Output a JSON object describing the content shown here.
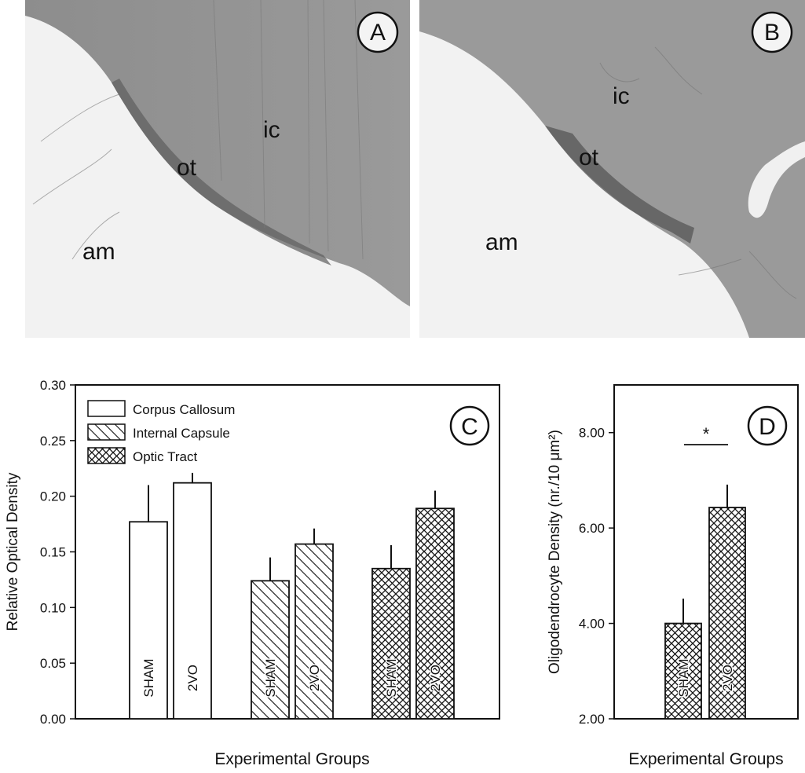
{
  "panel_a": {
    "letter": "A",
    "labels": {
      "ic": "ic",
      "ot": "ot",
      "am": "am"
    }
  },
  "panel_b": {
    "letter": "B",
    "labels": {
      "ic": "ic",
      "ot": "ot",
      "am": "am"
    }
  },
  "chart_data": [
    {
      "id": "C",
      "type": "bar",
      "panel_letter": "C",
      "ylabel": "Relative Optical Density",
      "xlabel": "Experimental Groups",
      "ylim": [
        0,
        0.3
      ],
      "yticks": [
        "0.00",
        "0.05",
        "0.10",
        "0.15",
        "0.20",
        "0.25",
        "0.30"
      ],
      "legend": [
        "Corpus Callosum",
        "Internal Capsule",
        "Optic Tract"
      ],
      "legend_position": "top-left",
      "groups": [
        {
          "series": "Corpus Callosum",
          "pattern": "plain",
          "bars": [
            {
              "label": "SHAM",
              "value": 0.177,
              "error": 0.033
            },
            {
              "label": "2VO",
              "value": 0.212,
              "error": 0.009
            }
          ]
        },
        {
          "series": "Internal Capsule",
          "pattern": "diagonal",
          "bars": [
            {
              "label": "SHAM",
              "value": 0.124,
              "error": 0.021
            },
            {
              "label": "2VO",
              "value": 0.157,
              "error": 0.014
            }
          ]
        },
        {
          "series": "Optic Tract",
          "pattern": "crosshatch",
          "bars": [
            {
              "label": "SHAM",
              "value": 0.135,
              "error": 0.021
            },
            {
              "label": "2VO",
              "value": 0.189,
              "error": 0.016
            }
          ]
        }
      ]
    },
    {
      "id": "D",
      "type": "bar",
      "panel_letter": "D",
      "ylabel": "Oligodendrocyte Density (nr./10 μm²)",
      "xlabel": "Experimental Groups",
      "ylim": [
        2.0,
        9.0
      ],
      "yticks": [
        "2.00",
        "4.00",
        "6.00",
        "8.00"
      ],
      "significance": "*",
      "bars": [
        {
          "label": "SHAM",
          "value": 4.0,
          "error": 0.52,
          "pattern": "crosshatch"
        },
        {
          "label": "2VO",
          "value": 6.43,
          "error": 0.48,
          "pattern": "crosshatch"
        }
      ]
    }
  ]
}
